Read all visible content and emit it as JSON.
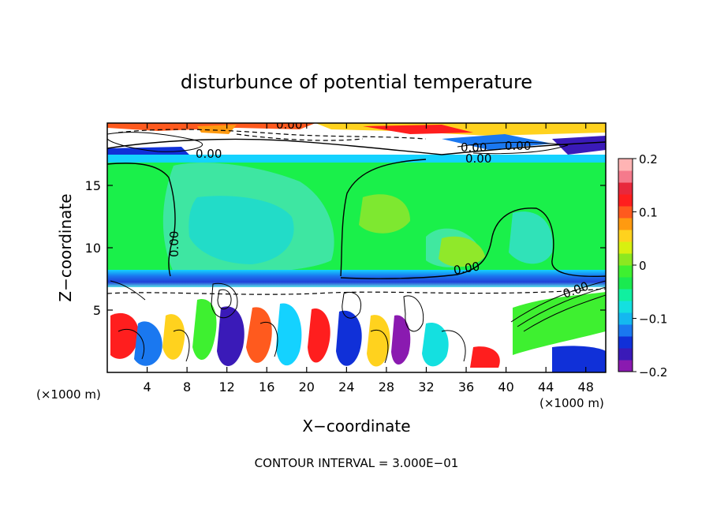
{
  "chart_data": {
    "type": "heatmap",
    "title": "disturbunce of potential temperature",
    "xlabel": "X−coordinate",
    "ylabel": "Z−coordinate",
    "x_unit_left": "(×1000 m)",
    "x_unit_right": "(×1000 m)",
    "xlim": [
      0,
      50
    ],
    "ylim": [
      0,
      20
    ],
    "x_ticks": [
      4,
      8,
      12,
      16,
      20,
      24,
      28,
      32,
      36,
      40,
      44,
      48
    ],
    "y_ticks": [
      5,
      10,
      15
    ],
    "colorbar": {
      "range": [
        -0.2,
        0.2
      ],
      "ticks": [
        -0.2,
        -0.1,
        0,
        0.1,
        0.2
      ],
      "tick_labels": [
        "−0.2",
        "−0.1",
        "0",
        "0.1",
        "0.2"
      ],
      "colors": [
        "#8a1ab0",
        "#3a1ab8",
        "#1030d8",
        "#1a78f0",
        "#14b8f0",
        "#14e0e0",
        "#10f0a0",
        "#1aea50",
        "#3ef030",
        "#8ce820",
        "#d8f010",
        "#ffd21e",
        "#ff9a10",
        "#ff5a1e",
        "#ff1e1e",
        "#e8283c",
        "#f57a8c",
        "#ffb4b4"
      ]
    },
    "contour_labels": [
      "0.00",
      "0.00",
      "0.00",
      "0.00",
      "0.00",
      "0.00",
      "0.00",
      "0.00"
    ],
    "footer": "CONTOUR INTERVAL = 3.000E−01"
  }
}
